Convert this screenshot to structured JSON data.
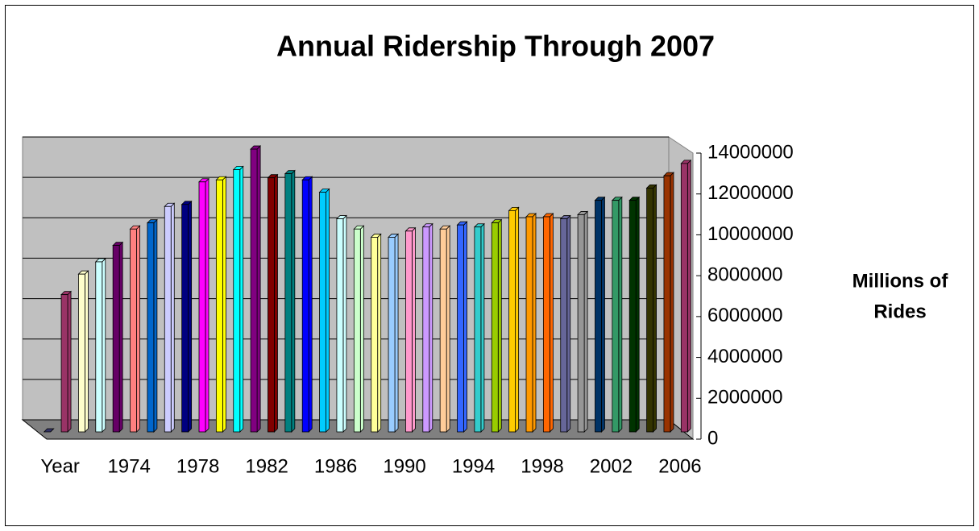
{
  "chart_data": {
    "type": "bar3d",
    "title": "Annual Ridership Through 2007",
    "y_label": [
      "Millions of",
      "Rides"
    ],
    "categories": [
      "Year",
      null,
      null,
      null,
      "1974",
      null,
      null,
      null,
      "1978",
      null,
      null,
      null,
      "1982",
      null,
      null,
      null,
      "1986",
      null,
      null,
      null,
      "1990",
      null,
      null,
      null,
      "1994",
      null,
      null,
      null,
      "1998",
      null,
      null,
      null,
      "2002",
      null,
      null,
      null,
      "2006",
      null
    ],
    "values": [
      0,
      6700000,
      7700000,
      8300000,
      9100000,
      9900000,
      10200000,
      11000000,
      11100000,
      12200000,
      12300000,
      12800000,
      13800000,
      12400000,
      12600000,
      12300000,
      11700000,
      10400000,
      9900000,
      9500000,
      9500000,
      9800000,
      10000000,
      9900000,
      10100000,
      10000000,
      10200000,
      10800000,
      10500000,
      10500000,
      10400000,
      10600000,
      11300000,
      11300000,
      11300000,
      11900000,
      12500000,
      13100000
    ],
    "colors": [
      "#333366",
      "#993366",
      "#ffffcc",
      "#ccffff",
      "#660066",
      "#ff8080",
      "#0066cc",
      "#ccccff",
      "#000080",
      "#ff00ff",
      "#ffff00",
      "#00ffff",
      "#800080",
      "#800000",
      "#008080",
      "#0000ff",
      "#00ccff",
      "#ccffff",
      "#ccffcc",
      "#ffff99",
      "#99ccff",
      "#ff99cc",
      "#cc99ff",
      "#ffcc99",
      "#3366ff",
      "#33cccc",
      "#99cc00",
      "#ffcc00",
      "#ff9900",
      "#ff6600",
      "#666699",
      "#969696",
      "#003366",
      "#339966",
      "#003300",
      "#333300",
      "#993300",
      "#993366"
    ],
    "ylim": [
      0,
      14000000
    ],
    "yticks": [
      0,
      2000000,
      4000000,
      6000000,
      8000000,
      10000000,
      12000000,
      14000000
    ],
    "grid": true
  }
}
